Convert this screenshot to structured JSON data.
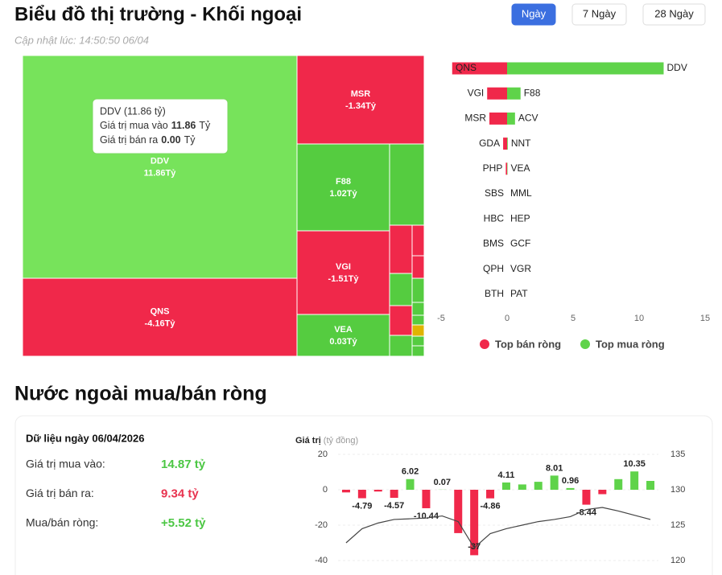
{
  "header": {
    "title": "Biểu đồ thị trường - Khối ngoại",
    "subtitle": "Cập nhật lúc: 14:50:50 06/04",
    "buttons": [
      "Ngày",
      "7 Ngày",
      "28 Ngày"
    ],
    "active": 0
  },
  "section_title": "Nước ngoài mua/bán ròng",
  "summary": {
    "date_label": "Dữ liệu ngày 06/04/2026",
    "rows": [
      {
        "label": "Giá trị mua vào:",
        "value": "14.87 tỷ",
        "color": "#4cc744"
      },
      {
        "label": "Giá trị bán ra:",
        "value": "9.34 tỷ",
        "color": "#e8334f"
      },
      {
        "label": "Mua/bán ròng:",
        "value": "+5.52 tỷ",
        "color": "#4cc744"
      }
    ]
  },
  "chart_data": [
    {
      "type": "treemap",
      "categories": [
        "DDV",
        "QNS",
        "MSR",
        "F88",
        "VGI",
        "VEA"
      ],
      "values": [
        11.86,
        -4.16,
        -1.34,
        1.02,
        -1.51,
        0.03
      ],
      "value_labels": [
        "11.86Tỷ",
        "-4.16Tỷ",
        "-1.34Tỷ",
        "1.02Tỷ",
        "-1.51Tỷ",
        "0.03Tỷ"
      ],
      "colors": [
        "#77e35b",
        "#f0284a",
        "#f0284a",
        "#55cc40",
        "#f0284a",
        "#55cc40"
      ],
      "tooltip": {
        "title": "DDV (11.86 tỷ)",
        "rows": [
          {
            "label": "Giá trị mua vào",
            "value": "11.86",
            "unit": "Tỷ"
          },
          {
            "label": "Giá trị bán ra",
            "value": "0.00",
            "unit": "Tỷ"
          }
        ]
      }
    },
    {
      "type": "diverging_bar",
      "series": [
        {
          "name": "Top bán ròng",
          "color": "#f0284a",
          "categories": [
            "QNS",
            "VGI",
            "MSR",
            "GDA",
            "PHP",
            "SBS",
            "HBC",
            "BMS",
            "QPH",
            "BTH"
          ],
          "values": [
            -4.16,
            -1.51,
            -1.34,
            -0.3,
            -0.1,
            0,
            0,
            0,
            0,
            0
          ]
        },
        {
          "name": "Top mua ròng",
          "color": "#5fd34a",
          "categories": [
            "DDV",
            "F88",
            "ACV",
            "NNT",
            "VEA",
            "MML",
            "HEP",
            "GCF",
            "VGR",
            "PAT"
          ],
          "values": [
            11.86,
            1.02,
            0.6,
            0.05,
            0.03,
            0,
            0,
            0,
            0,
            0
          ]
        }
      ],
      "xlim": [
        -5,
        15
      ],
      "xticks": [
        -5,
        0,
        5,
        10,
        15
      ]
    },
    {
      "type": "bar_line",
      "title": "Giá trị",
      "subtitle": "(tỷ đồng)",
      "categories": [
        null,
        null,
        null,
        null,
        null,
        null,
        null,
        null,
        null,
        null,
        null,
        null,
        null,
        null,
        null,
        null,
        null,
        null,
        null,
        null
      ],
      "series": [
        {
          "type": "bar",
          "color": "#5fd34a",
          "negative_color": "#f0284a",
          "values": [
            -1.5,
            -4.79,
            -1,
            -4.57,
            6.02,
            -10.44,
            0.07,
            -24.5,
            -37,
            -4.86,
            4.11,
            3,
            4.5,
            8.01,
            0.96,
            -8.44,
            -2.5,
            6,
            10.35,
            5
          ],
          "value_labels": [
            null,
            "-4.79",
            null,
            "-4.57",
            "6.02",
            "-10.44",
            "0.07",
            null,
            "-37",
            "-4.86",
            "4.11",
            null,
            null,
            "8.01",
            "0.96",
            "-8.44",
            null,
            null,
            "10.35",
            null
          ]
        },
        {
          "type": "line",
          "axis": "y2",
          "color": "#444444",
          "values": [
            122.5,
            124.5,
            125.3,
            125.8,
            125.9,
            126.0,
            126.3,
            125.5,
            121.8,
            123.8,
            124.5,
            125,
            125.5,
            125.8,
            126.2,
            127.2,
            127.5,
            127.0,
            126.4,
            125.8
          ]
        }
      ],
      "ylim": [
        -40,
        20
      ],
      "yticks": [
        -40,
        -20,
        0,
        20
      ],
      "y2lim": [
        120,
        135
      ],
      "y2ticks": [
        120,
        125,
        130,
        135
      ],
      "grid": true
    }
  ]
}
